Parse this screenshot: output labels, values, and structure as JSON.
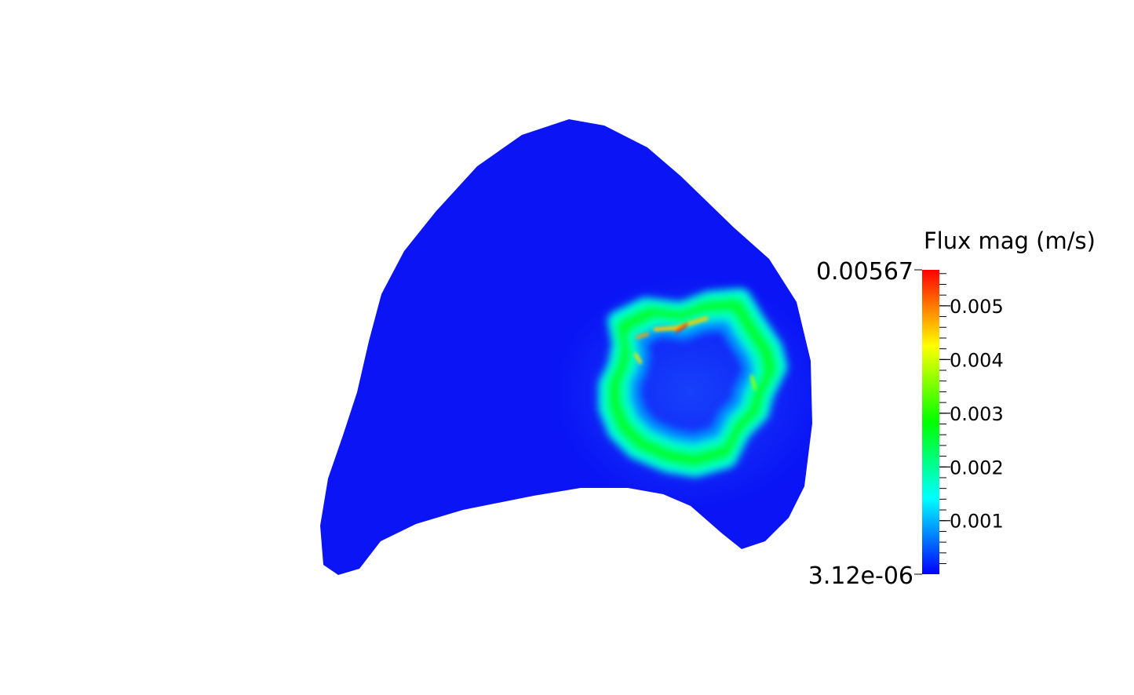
{
  "chart_data": {
    "type": "heatmap",
    "title": "Flux mag (m/s)",
    "field": "Flux mag",
    "unit": "m/s",
    "range": [
      3.12e-06,
      0.00567
    ],
    "range_labels": {
      "max": "0.00567",
      "min": "3.12e-06"
    },
    "ticks": [
      {
        "value": 0.005,
        "label": "0.005"
      },
      {
        "value": 0.004,
        "label": "0.004"
      },
      {
        "value": 0.003,
        "label": "0.003"
      },
      {
        "value": 0.002,
        "label": "0.002"
      },
      {
        "value": 0.001,
        "label": "0.001"
      }
    ],
    "minor_tick_step": 0.0002,
    "colormap": [
      "#0000ff",
      "#0080ff",
      "#00ffff",
      "#00ff80",
      "#00ff00",
      "#80ff00",
      "#ffff00",
      "#ff8000",
      "#ff0000"
    ],
    "background_color": "#ffffff",
    "field_base_color": "#0a14f5",
    "legend_placement": "right",
    "grid": false
  }
}
